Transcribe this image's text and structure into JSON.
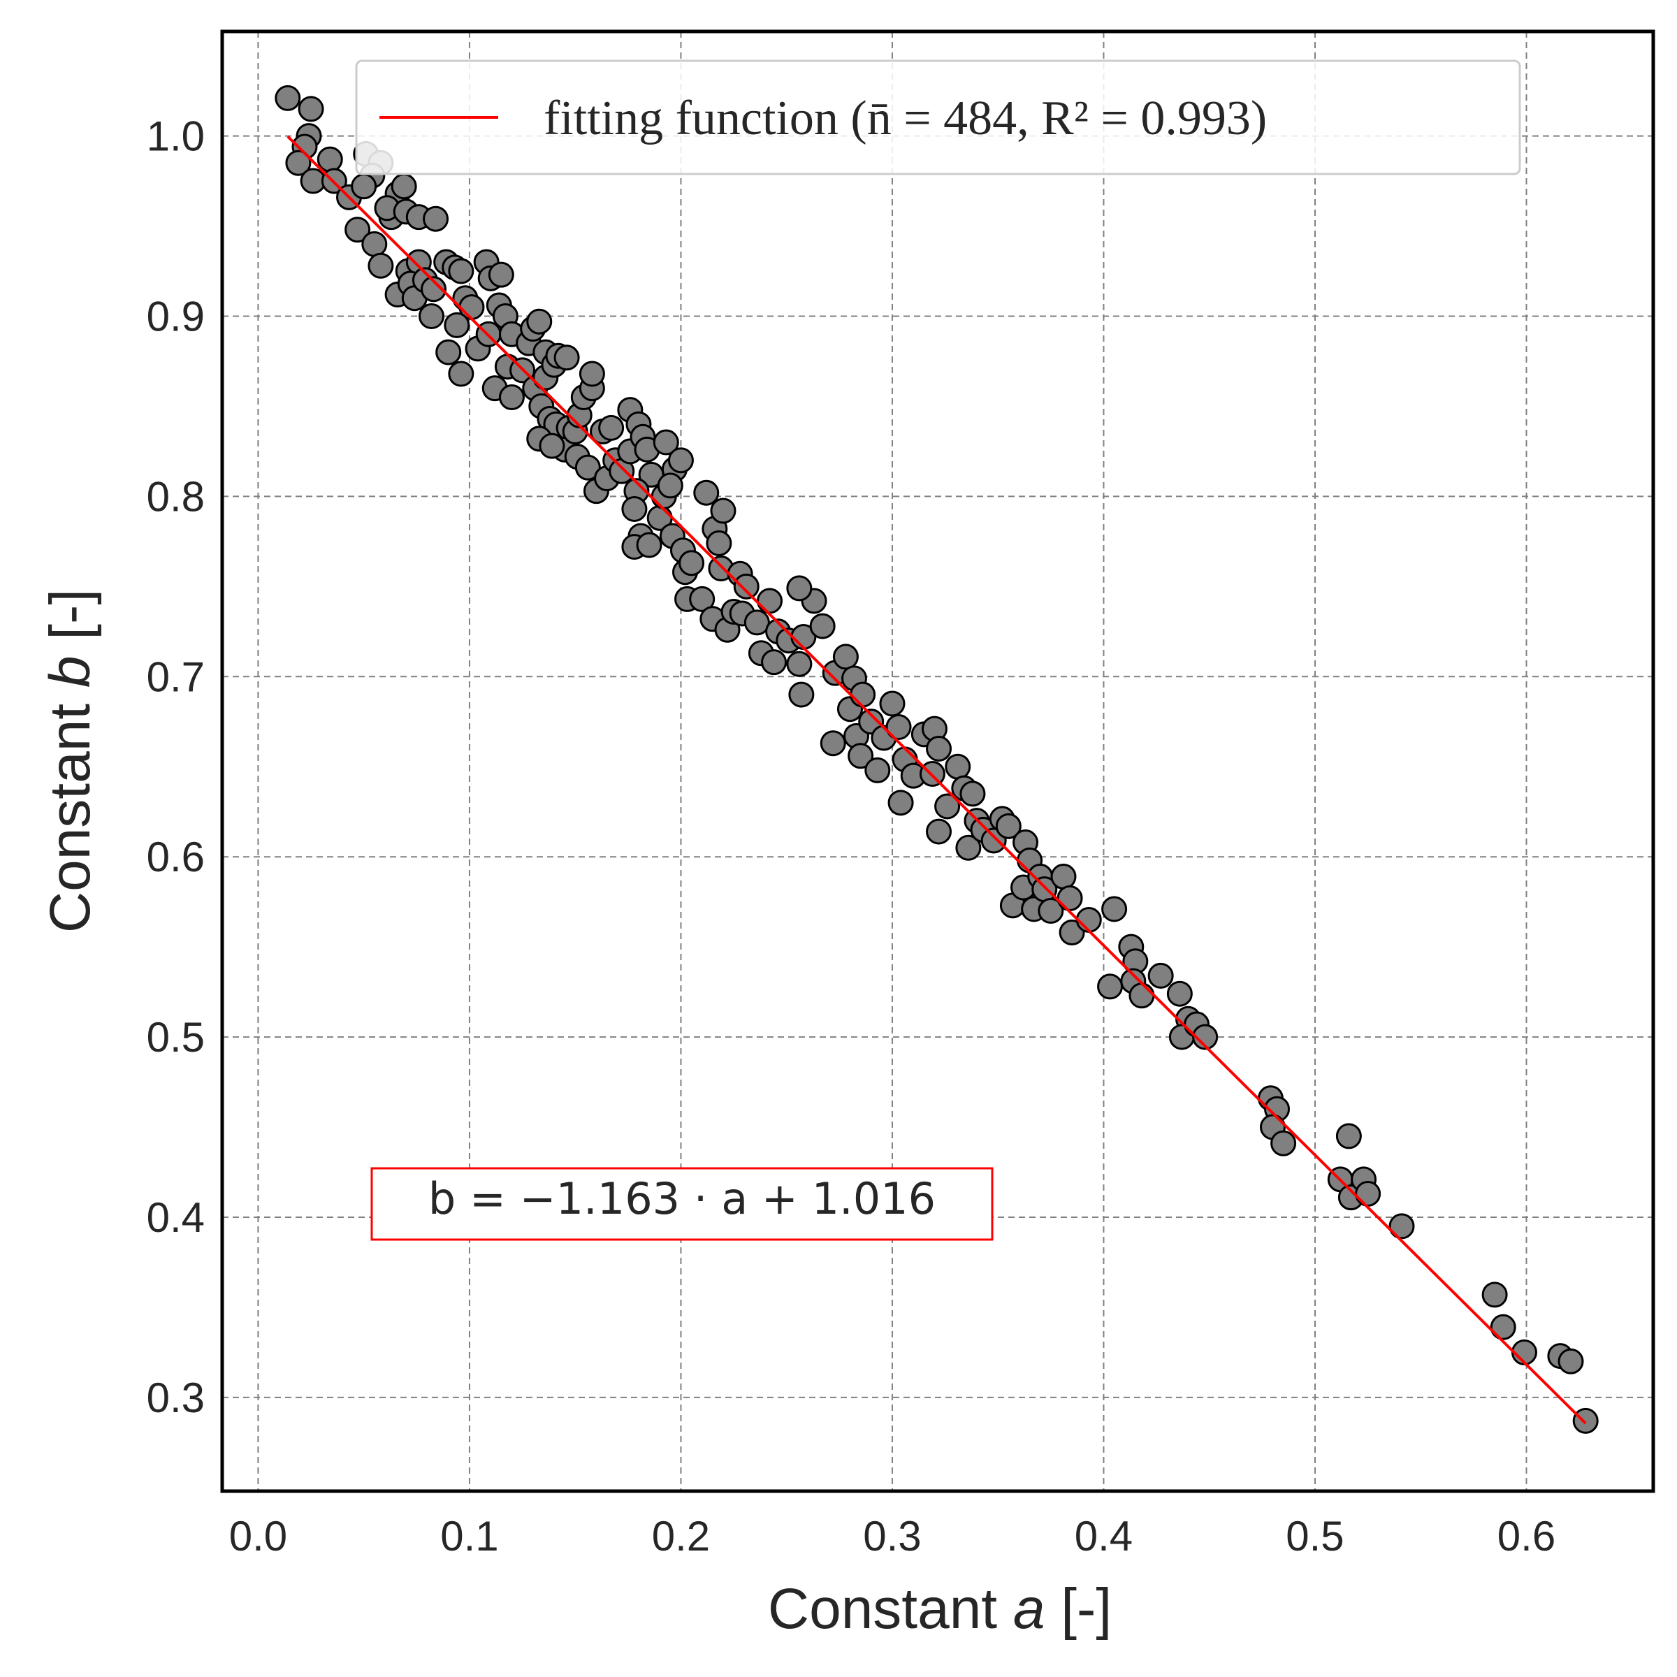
{
  "chart_data": {
    "type": "scatter",
    "xlabel": {
      "prefix": "Constant ",
      "var": "a",
      "suffix": " [-]"
    },
    "ylabel": {
      "prefix": "Constant ",
      "var": "b",
      "suffix": " [-]"
    },
    "xlim": [
      -0.017,
      0.66
    ],
    "ylim": [
      0.248,
      1.058
    ],
    "xticks": [
      "0.0",
      "0.1",
      "0.2",
      "0.3",
      "0.4",
      "0.5",
      "0.6"
    ],
    "yticks": [
      "0.3",
      "0.4",
      "0.5",
      "0.6",
      "0.7",
      "0.8",
      "0.9",
      "1.0"
    ],
    "grid": true,
    "legend_position": "top",
    "legend_label": "fitting function (n̄ = 484, R² = 0.993)",
    "equation_label": "b = −1.163 · a + 1.016",
    "fit": {
      "slope": -1.163,
      "intercept": 1.016,
      "x_range": [
        0.014,
        0.628
      ]
    },
    "series": [
      {
        "color": "#808080",
        "edge_color": "#000000",
        "points": [
          [
            0.014,
            1.021
          ],
          [
            0.025,
            1.015
          ],
          [
            0.024,
            1.0
          ],
          [
            0.022,
            0.994
          ],
          [
            0.019,
            0.985
          ],
          [
            0.026,
            0.975
          ],
          [
            0.034,
            0.987
          ],
          [
            0.036,
            0.975
          ],
          [
            0.043,
            0.966
          ],
          [
            0.051,
            0.99
          ],
          [
            0.058,
            0.985
          ],
          [
            0.054,
            0.978
          ],
          [
            0.05,
            0.972
          ],
          [
            0.047,
            0.948
          ],
          [
            0.055,
            0.94
          ],
          [
            0.063,
            0.955
          ],
          [
            0.066,
            0.968
          ],
          [
            0.069,
            0.972
          ],
          [
            0.061,
            0.96
          ],
          [
            0.07,
            0.958
          ],
          [
            0.076,
            0.955
          ],
          [
            0.084,
            0.954
          ],
          [
            0.058,
            0.928
          ],
          [
            0.066,
            0.912
          ],
          [
            0.071,
            0.925
          ],
          [
            0.076,
            0.93
          ],
          [
            0.072,
            0.918
          ],
          [
            0.074,
            0.91
          ],
          [
            0.079,
            0.92
          ],
          [
            0.083,
            0.915
          ],
          [
            0.082,
            0.9
          ],
          [
            0.089,
            0.93
          ],
          [
            0.093,
            0.927
          ],
          [
            0.096,
            0.925
          ],
          [
            0.098,
            0.91
          ],
          [
            0.101,
            0.905
          ],
          [
            0.09,
            0.88
          ],
          [
            0.094,
            0.895
          ],
          [
            0.096,
            0.868
          ],
          [
            0.104,
            0.882
          ],
          [
            0.108,
            0.93
          ],
          [
            0.11,
            0.921
          ],
          [
            0.109,
            0.89
          ],
          [
            0.115,
            0.923
          ],
          [
            0.114,
            0.906
          ],
          [
            0.117,
            0.9
          ],
          [
            0.12,
            0.89
          ],
          [
            0.118,
            0.872
          ],
          [
            0.112,
            0.86
          ],
          [
            0.12,
            0.855
          ],
          [
            0.125,
            0.87
          ],
          [
            0.128,
            0.885
          ],
          [
            0.13,
            0.893
          ],
          [
            0.133,
            0.897
          ],
          [
            0.136,
            0.88
          ],
          [
            0.131,
            0.86
          ],
          [
            0.136,
            0.866
          ],
          [
            0.14,
            0.873
          ],
          [
            0.142,
            0.878
          ],
          [
            0.146,
            0.877
          ],
          [
            0.134,
            0.85
          ],
          [
            0.138,
            0.843
          ],
          [
            0.141,
            0.84
          ],
          [
            0.147,
            0.838
          ],
          [
            0.145,
            0.826
          ],
          [
            0.133,
            0.832
          ],
          [
            0.139,
            0.828
          ],
          [
            0.15,
            0.836
          ],
          [
            0.152,
            0.845
          ],
          [
            0.154,
            0.855
          ],
          [
            0.158,
            0.86
          ],
          [
            0.158,
            0.868
          ],
          [
            0.151,
            0.822
          ],
          [
            0.156,
            0.816
          ],
          [
            0.16,
            0.803
          ],
          [
            0.163,
            0.836
          ],
          [
            0.167,
            0.838
          ],
          [
            0.165,
            0.81
          ],
          [
            0.169,
            0.82
          ],
          [
            0.172,
            0.814
          ],
          [
            0.176,
            0.825
          ],
          [
            0.176,
            0.848
          ],
          [
            0.18,
            0.84
          ],
          [
            0.182,
            0.833
          ],
          [
            0.184,
            0.826
          ],
          [
            0.186,
            0.812
          ],
          [
            0.179,
            0.803
          ],
          [
            0.178,
            0.793
          ],
          [
            0.181,
            0.778
          ],
          [
            0.178,
            0.772
          ],
          [
            0.185,
            0.773
          ],
          [
            0.19,
            0.788
          ],
          [
            0.192,
            0.8
          ],
          [
            0.193,
            0.83
          ],
          [
            0.197,
            0.815
          ],
          [
            0.2,
            0.82
          ],
          [
            0.195,
            0.806
          ],
          [
            0.196,
            0.778
          ],
          [
            0.201,
            0.77
          ],
          [
            0.202,
            0.758
          ],
          [
            0.205,
            0.763
          ],
          [
            0.203,
            0.743
          ],
          [
            0.21,
            0.743
          ],
          [
            0.212,
            0.802
          ],
          [
            0.216,
            0.782
          ],
          [
            0.22,
            0.792
          ],
          [
            0.218,
            0.774
          ],
          [
            0.219,
            0.76
          ],
          [
            0.215,
            0.732
          ],
          [
            0.222,
            0.726
          ],
          [
            0.225,
            0.736
          ],
          [
            0.228,
            0.757
          ],
          [
            0.231,
            0.75
          ],
          [
            0.229,
            0.735
          ],
          [
            0.236,
            0.73
          ],
          [
            0.238,
            0.713
          ],
          [
            0.242,
            0.742
          ],
          [
            0.246,
            0.725
          ],
          [
            0.244,
            0.708
          ],
          [
            0.251,
            0.72
          ],
          [
            0.258,
            0.722
          ],
          [
            0.256,
            0.707
          ],
          [
            0.257,
            0.69
          ],
          [
            0.263,
            0.742
          ],
          [
            0.256,
            0.749
          ],
          [
            0.267,
            0.728
          ],
          [
            0.273,
            0.702
          ],
          [
            0.278,
            0.711
          ],
          [
            0.272,
            0.663
          ],
          [
            0.28,
            0.682
          ],
          [
            0.282,
            0.699
          ],
          [
            0.286,
            0.69
          ],
          [
            0.283,
            0.667
          ],
          [
            0.285,
            0.656
          ],
          [
            0.29,
            0.675
          ],
          [
            0.293,
            0.648
          ],
          [
            0.296,
            0.666
          ],
          [
            0.3,
            0.685
          ],
          [
            0.303,
            0.672
          ],
          [
            0.306,
            0.654
          ],
          [
            0.31,
            0.645
          ],
          [
            0.304,
            0.63
          ],
          [
            0.315,
            0.668
          ],
          [
            0.32,
            0.671
          ],
          [
            0.322,
            0.66
          ],
          [
            0.319,
            0.646
          ],
          [
            0.322,
            0.614
          ],
          [
            0.326,
            0.628
          ],
          [
            0.331,
            0.65
          ],
          [
            0.334,
            0.638
          ],
          [
            0.338,
            0.635
          ],
          [
            0.336,
            0.605
          ],
          [
            0.34,
            0.62
          ],
          [
            0.343,
            0.615
          ],
          [
            0.348,
            0.609
          ],
          [
            0.352,
            0.621
          ],
          [
            0.355,
            0.617
          ],
          [
            0.357,
            0.573
          ],
          [
            0.363,
            0.608
          ],
          [
            0.365,
            0.598
          ],
          [
            0.362,
            0.583
          ],
          [
            0.367,
            0.571
          ],
          [
            0.37,
            0.589
          ],
          [
            0.372,
            0.582
          ],
          [
            0.375,
            0.57
          ],
          [
            0.381,
            0.589
          ],
          [
            0.384,
            0.577
          ],
          [
            0.385,
            0.558
          ],
          [
            0.393,
            0.565
          ],
          [
            0.403,
            0.528
          ],
          [
            0.405,
            0.571
          ],
          [
            0.413,
            0.55
          ],
          [
            0.415,
            0.542
          ],
          [
            0.414,
            0.531
          ],
          [
            0.418,
            0.523
          ],
          [
            0.427,
            0.534
          ],
          [
            0.436,
            0.524
          ],
          [
            0.44,
            0.51
          ],
          [
            0.437,
            0.5
          ],
          [
            0.444,
            0.507
          ],
          [
            0.448,
            0.5
          ],
          [
            0.479,
            0.466
          ],
          [
            0.482,
            0.46
          ],
          [
            0.48,
            0.45
          ],
          [
            0.485,
            0.441
          ],
          [
            0.512,
            0.421
          ],
          [
            0.516,
            0.445
          ],
          [
            0.517,
            0.411
          ],
          [
            0.523,
            0.421
          ],
          [
            0.525,
            0.413
          ],
          [
            0.541,
            0.395
          ],
          [
            0.585,
            0.357
          ],
          [
            0.589,
            0.339
          ],
          [
            0.599,
            0.325
          ],
          [
            0.616,
            0.323
          ],
          [
            0.621,
            0.32
          ],
          [
            0.628,
            0.287
          ]
        ]
      }
    ]
  }
}
